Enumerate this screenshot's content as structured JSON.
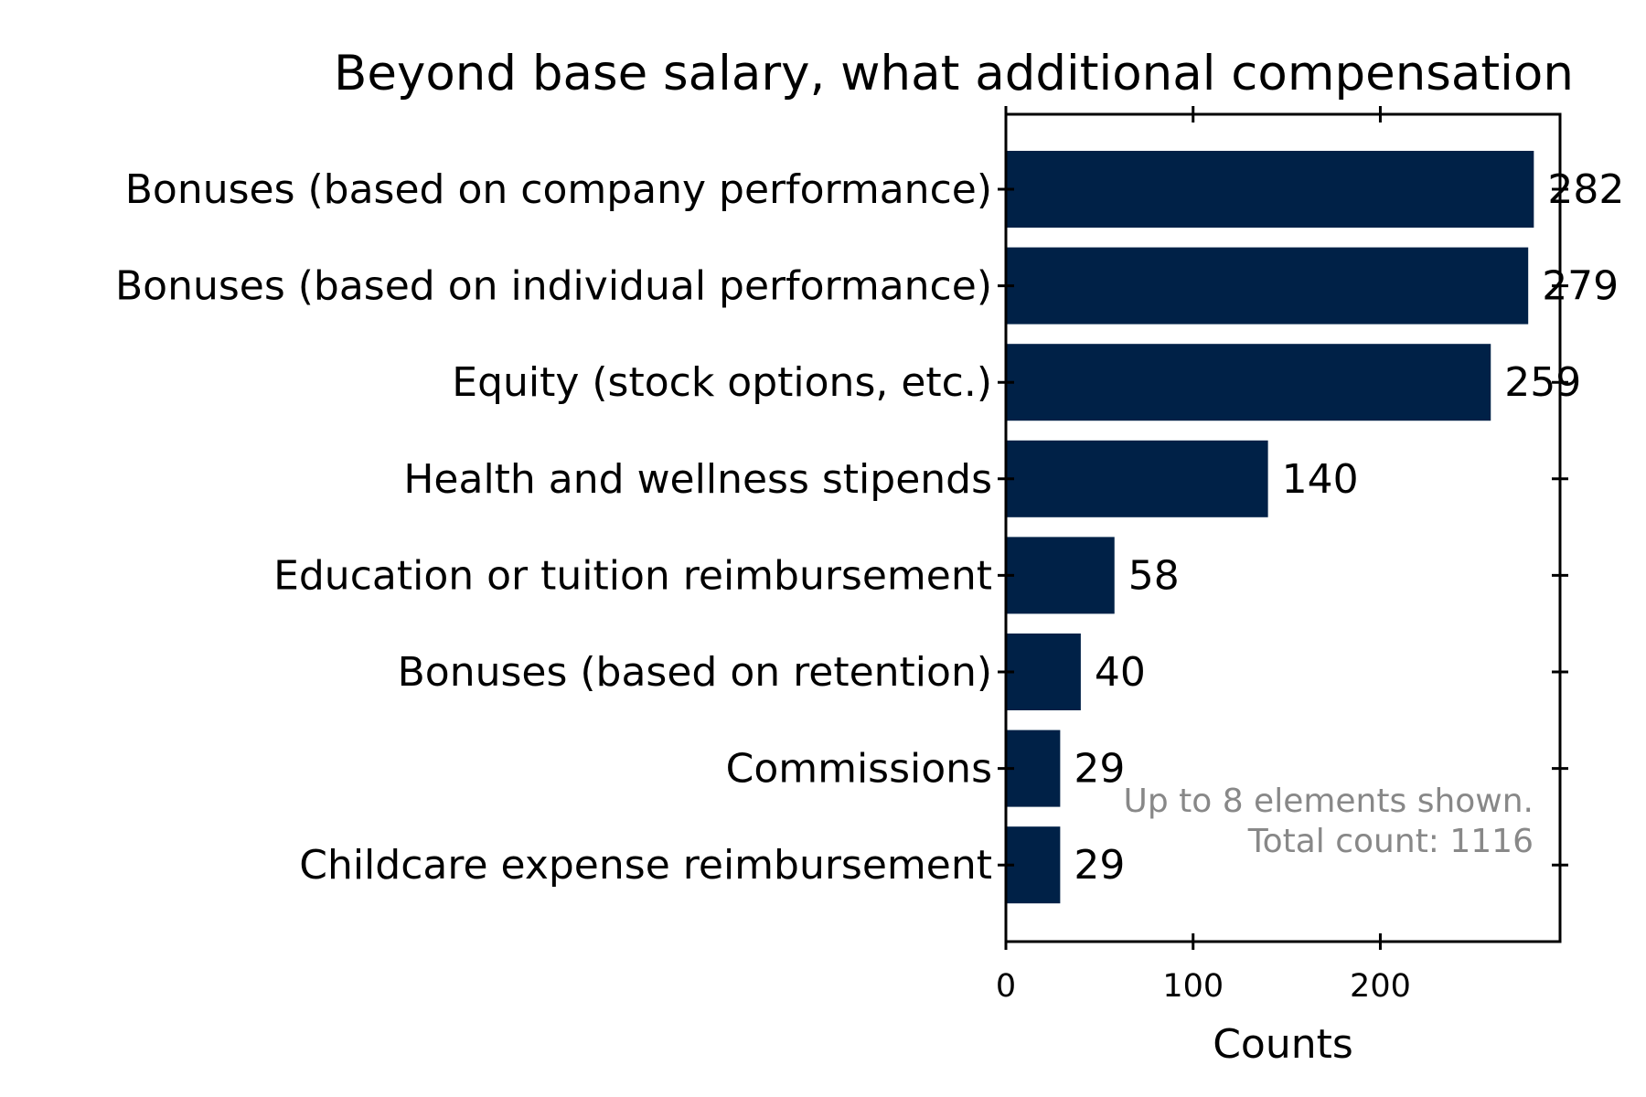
{
  "chart_data": {
    "type": "bar",
    "orientation": "horizontal",
    "title": "Beyond base salary, what additional compensation",
    "xlabel": "Counts",
    "ylabel": "",
    "categories": [
      "Bonuses (based on company performance)",
      "Bonuses (based on individual performance)",
      "Equity (stock options, etc.)",
      "Health and wellness stipends",
      "Education or tuition reimbursement",
      "Bonuses (based on retention)",
      "Commissions",
      "Childcare expense reimbursement"
    ],
    "values": [
      282,
      279,
      259,
      140,
      58,
      40,
      29,
      29
    ],
    "xlim": [
      0,
      296
    ],
    "xticks": [
      0,
      100,
      200
    ],
    "grid": false,
    "bar_color": "#002147",
    "annotation": [
      "Up to 8 elements shown.",
      "Total count: 1116"
    ]
  }
}
